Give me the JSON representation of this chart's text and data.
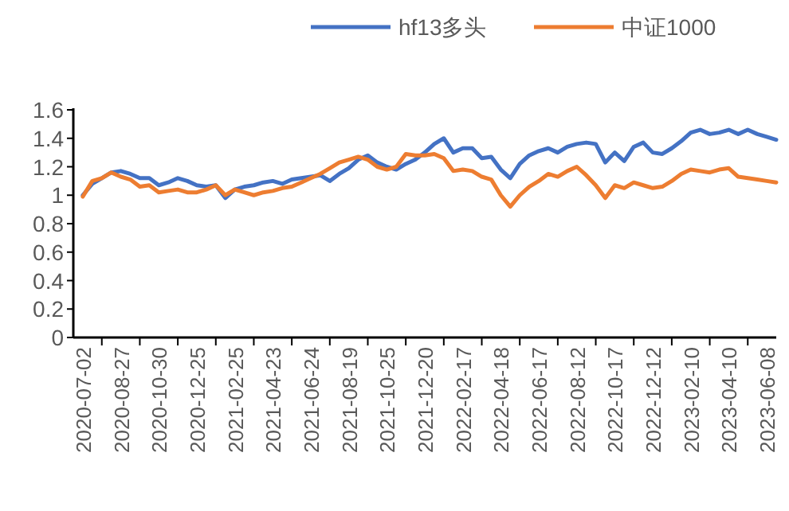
{
  "chart_data": {
    "type": "line",
    "categories": [
      "2020-07-02",
      null,
      null,
      null,
      "2020-08-27",
      null,
      null,
      null,
      "2020-10-30",
      null,
      null,
      null,
      "2020-12-25",
      null,
      null,
      null,
      "2021-02-25",
      null,
      null,
      null,
      "2021-04-23",
      null,
      null,
      null,
      "2021-06-24",
      null,
      null,
      null,
      "2021-08-19",
      null,
      null,
      null,
      "2021-10-25",
      null,
      null,
      null,
      "2021-12-20",
      null,
      null,
      null,
      "2022-02-17",
      null,
      null,
      null,
      "2022-04-18",
      null,
      null,
      null,
      "2022-06-17",
      null,
      null,
      null,
      "2022-08-12",
      null,
      null,
      null,
      "2022-10-17",
      null,
      null,
      null,
      "2022-12-12",
      null,
      null,
      null,
      "2023-02-10",
      null,
      null,
      null,
      "2023-04-10",
      null,
      null,
      null,
      "2023-06-08",
      null
    ],
    "series": [
      {
        "name": "hf13多头",
        "color": "#4472c4",
        "values": [
          1.0,
          1.08,
          1.12,
          1.16,
          1.17,
          1.15,
          1.12,
          1.12,
          1.07,
          1.09,
          1.12,
          1.1,
          1.07,
          1.06,
          1.07,
          0.98,
          1.04,
          1.06,
          1.07,
          1.09,
          1.1,
          1.08,
          1.11,
          1.12,
          1.13,
          1.14,
          1.1,
          1.15,
          1.19,
          1.25,
          1.28,
          1.23,
          1.2,
          1.18,
          1.22,
          1.25,
          1.3,
          1.36,
          1.4,
          1.3,
          1.33,
          1.33,
          1.26,
          1.27,
          1.18,
          1.12,
          1.22,
          1.28,
          1.31,
          1.33,
          1.3,
          1.34,
          1.36,
          1.37,
          1.36,
          1.23,
          1.3,
          1.24,
          1.34,
          1.37,
          1.3,
          1.29,
          1.33,
          1.38,
          1.44,
          1.46,
          1.43,
          1.44,
          1.46,
          1.43,
          1.46,
          1.43,
          1.41,
          1.39
        ]
      },
      {
        "name": "中证1000",
        "color": "#ed7d31",
        "values": [
          0.99,
          1.1,
          1.12,
          1.16,
          1.13,
          1.11,
          1.06,
          1.07,
          1.02,
          1.03,
          1.04,
          1.02,
          1.02,
          1.04,
          1.07,
          1.0,
          1.04,
          1.02,
          1.0,
          1.02,
          1.03,
          1.05,
          1.06,
          1.09,
          1.12,
          1.15,
          1.19,
          1.23,
          1.25,
          1.27,
          1.25,
          1.2,
          1.18,
          1.2,
          1.29,
          1.28,
          1.28,
          1.29,
          1.26,
          1.17,
          1.18,
          1.17,
          1.13,
          1.11,
          1.0,
          0.92,
          1.0,
          1.06,
          1.1,
          1.15,
          1.13,
          1.17,
          1.2,
          1.14,
          1.07,
          0.98,
          1.07,
          1.05,
          1.09,
          1.07,
          1.05,
          1.06,
          1.1,
          1.15,
          1.18,
          1.17,
          1.16,
          1.18,
          1.19,
          1.13,
          1.12,
          1.11,
          1.1,
          1.09
        ]
      }
    ],
    "ylim": [
      0,
      1.6
    ],
    "yticks": [
      0,
      0.2,
      0.4,
      0.6,
      0.8,
      1,
      1.2,
      1.4,
      1.6
    ],
    "legend": "top",
    "grid": false,
    "marker": "none",
    "line_style": "solid"
  }
}
